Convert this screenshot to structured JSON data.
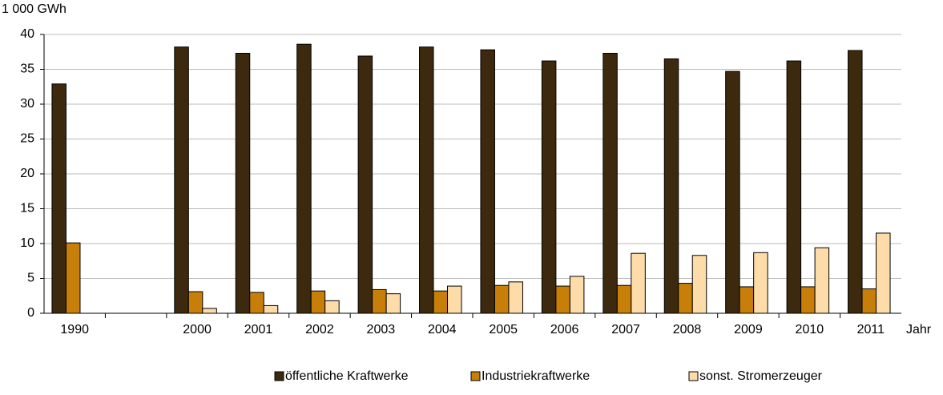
{
  "chart_data": {
    "type": "bar",
    "y_unit_label": "1 000 GWh",
    "x_label": "Jahr",
    "categories": [
      "1990",
      null,
      "2000",
      "2001",
      "2002",
      "2003",
      "2004",
      "2005",
      "2006",
      "2007",
      "2008",
      "2009",
      "2010",
      "2011"
    ],
    "series": [
      {
        "name": "öffentliche Kraftwerke",
        "color": "#3d2a0e",
        "values": [
          32.9,
          null,
          38.2,
          37.3,
          38.6,
          36.9,
          38.2,
          37.8,
          36.2,
          37.3,
          36.5,
          34.7,
          36.2,
          37.7
        ]
      },
      {
        "name": "Industriekraftwerke",
        "color": "#c87f0a",
        "values": [
          10.1,
          null,
          3.1,
          3.0,
          3.2,
          3.4,
          3.2,
          4.0,
          3.9,
          4.0,
          4.3,
          3.8,
          3.8,
          3.5
        ]
      },
      {
        "name": "sonst. Stromerzeuger",
        "color": "#fddcaa",
        "values": [
          null,
          null,
          0.7,
          1.1,
          1.8,
          2.8,
          3.9,
          4.5,
          5.3,
          8.6,
          8.3,
          8.7,
          9.4,
          11.5
        ]
      }
    ],
    "ylim": [
      0,
      40
    ],
    "yticks": [
      0,
      5,
      10,
      15,
      20,
      25,
      30,
      35,
      40
    ],
    "grid": true,
    "legend": "bottom"
  }
}
